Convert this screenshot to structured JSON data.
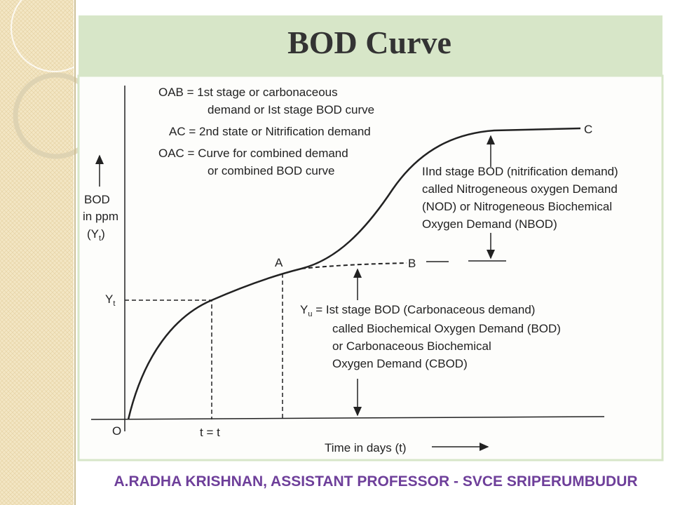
{
  "header": {
    "title": "BOD Curve"
  },
  "diagram": {
    "legend": [
      "OAB = 1st stage or carbonaceous",
      "demand or Ist stage BOD curve",
      "AC = 2nd state or Nitrification demand",
      "OAC = Curve for combined demand",
      "or combined BOD curve"
    ],
    "y_axis": {
      "lines": [
        "BOD",
        "in ppm"
      ],
      "symbol": {
        "open": "(Y",
        "sub": "t",
        "close": ")"
      }
    },
    "x_axis": {
      "label": "Time in days (t)"
    },
    "points": {
      "O": "O",
      "A": "A",
      "B": "B",
      "C": "C",
      "Yt": {
        "main": "Y",
        "sub": "t"
      },
      "t": "t = t"
    },
    "second_stage_note": [
      "IInd stage BOD (nitrification demand)",
      "called Nitrogeneous oxygen Demand",
      "(NOD) or Nitrogeneous Biochemical",
      "Oxygen Demand (NBOD)"
    ],
    "first_stage_note": {
      "symbol": "Y",
      "sub": "u",
      "first_line": " = Ist stage BOD (Carbonaceous demand)",
      "lines": [
        "called Biochemical Oxygen Demand (BOD)",
        "or Carbonaceous Biochemical",
        "Oxygen Demand (CBOD)"
      ]
    }
  },
  "footer": {
    "credit": "A.RADHA KRISHNAN, ASSISTANT PROFESSOR - SVCE SRIPERUMBUDUR"
  }
}
